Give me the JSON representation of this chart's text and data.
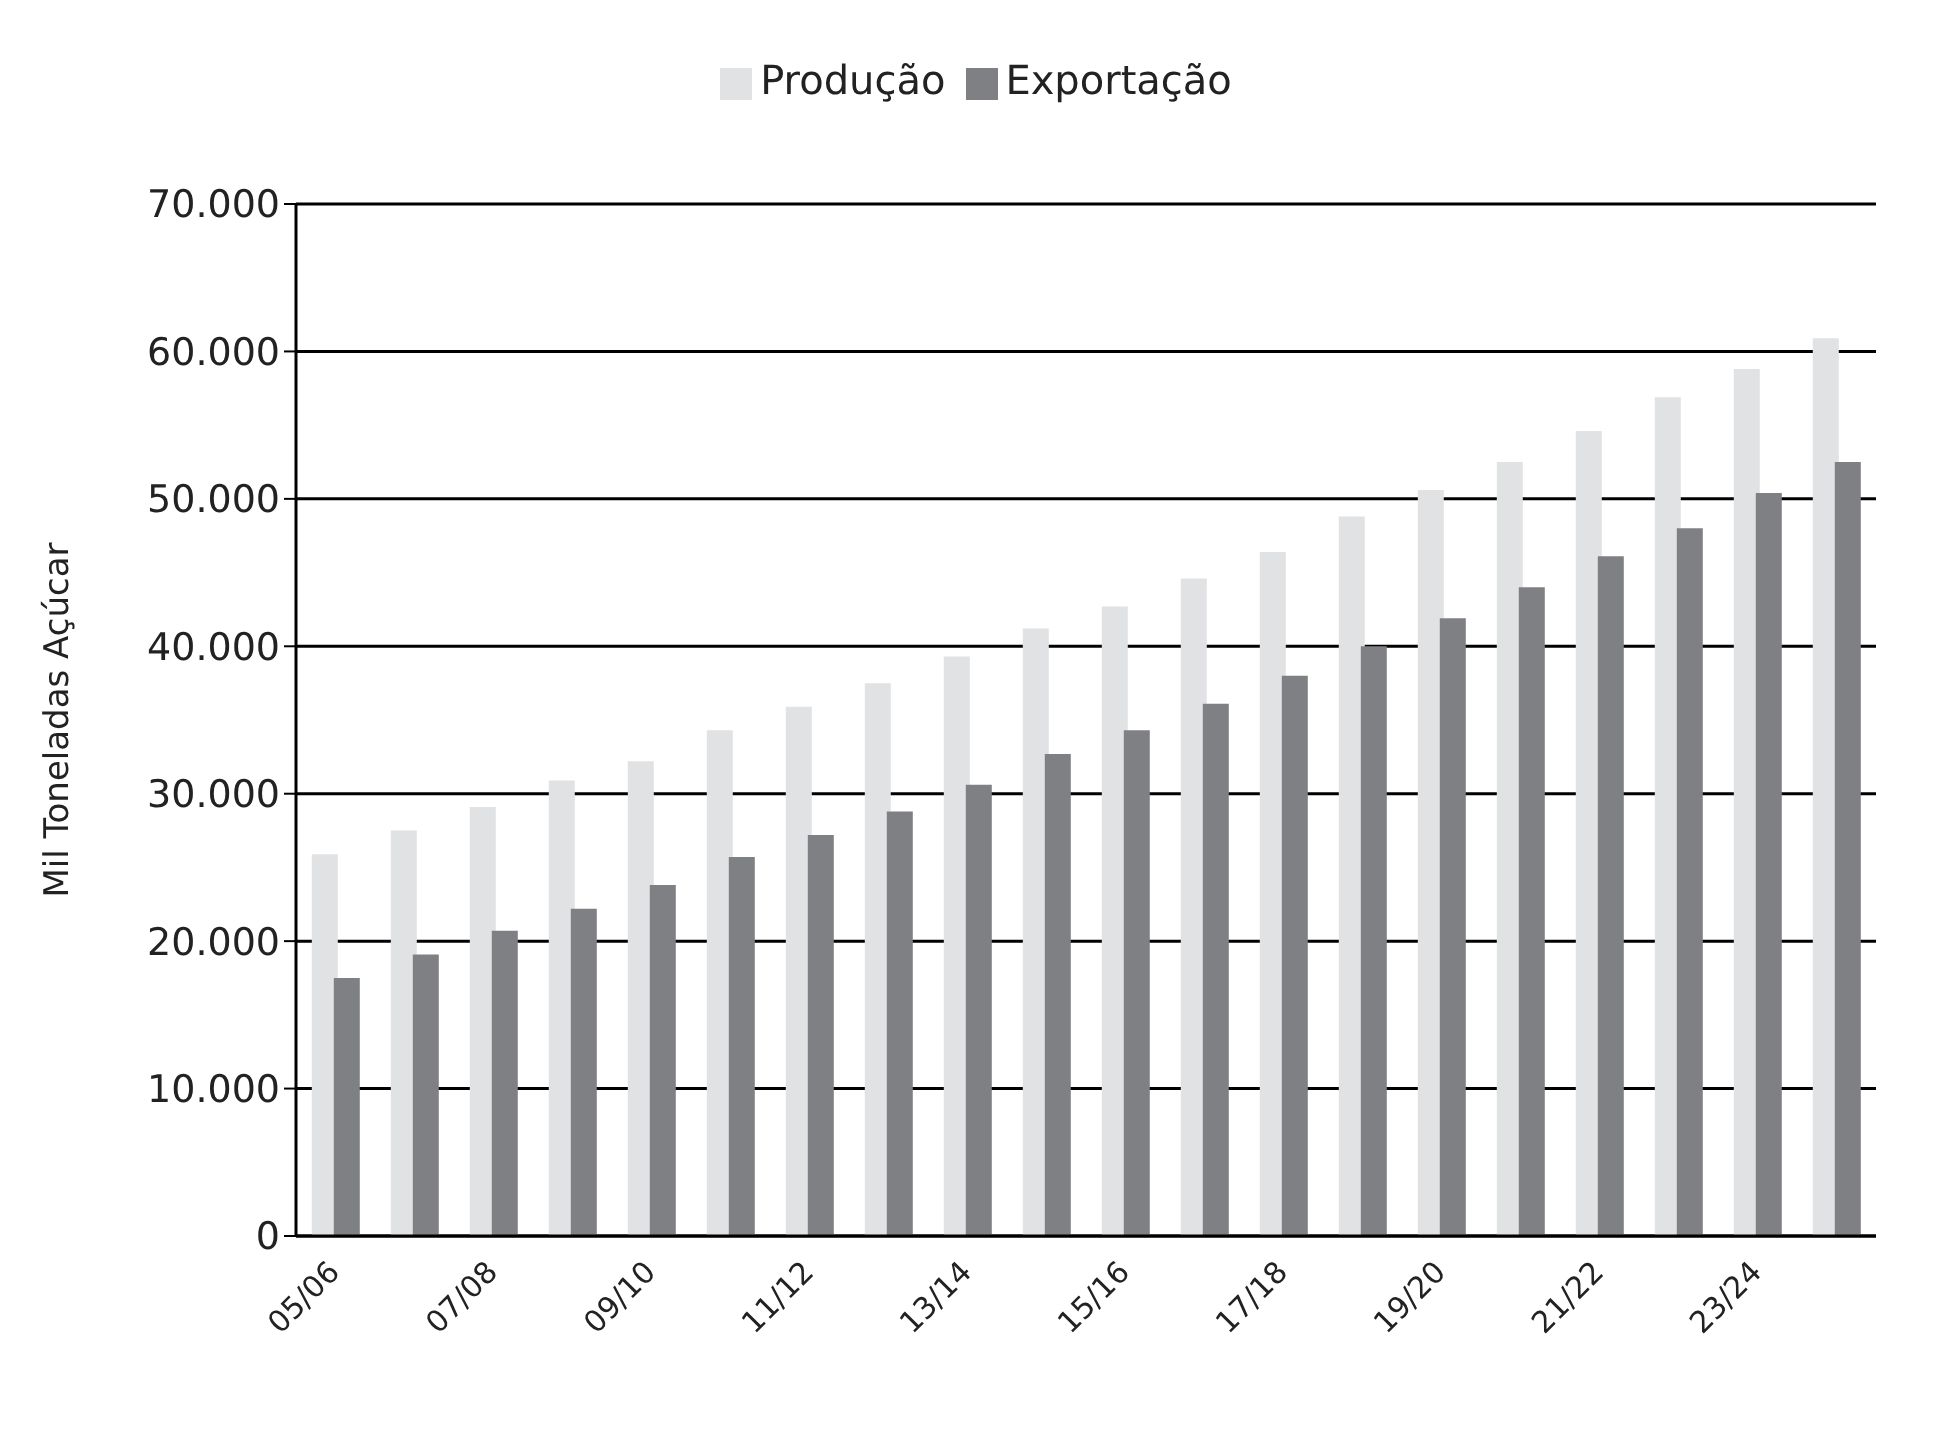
{
  "chart_data": {
    "type": "bar",
    "ylabel": "Mil Toneladas Açúcar",
    "categories": [
      "05/06",
      null,
      "07/08",
      null,
      "09/10",
      null,
      "11/12",
      null,
      "13/14",
      null,
      "15/16",
      null,
      "17/18",
      null,
      "19/20",
      null,
      "21/22",
      null,
      "23/24",
      null
    ],
    "series": [
      {
        "name": "Produção",
        "color": "#e1e2e4",
        "values": [
          25900,
          27500,
          29100,
          30900,
          32200,
          34300,
          35900,
          37500,
          39300,
          41200,
          42700,
          44600,
          46400,
          48800,
          50600,
          52500,
          54600,
          56900,
          58800,
          60900
        ]
      },
      {
        "name": "Exportação",
        "color": "#7f8084",
        "values": [
          17500,
          19100,
          20700,
          22200,
          23800,
          25700,
          27200,
          28800,
          30600,
          32700,
          34300,
          36100,
          38000,
          40000,
          41900,
          44000,
          46100,
          48000,
          50400,
          52500
        ]
      }
    ],
    "ylim": [
      0,
      70000
    ],
    "yticks": [
      {
        "value": 0,
        "label": "0"
      },
      {
        "value": 10000,
        "label": "10.000"
      },
      {
        "value": 20000,
        "label": "20.000"
      },
      {
        "value": 30000,
        "label": "30.000"
      },
      {
        "value": 40000,
        "label": "40.000"
      },
      {
        "value": 50000,
        "label": "50.000"
      },
      {
        "value": 60000,
        "label": "60.000"
      },
      {
        "value": 70000,
        "label": "70.000"
      }
    ],
    "grid": "y",
    "legend": "top"
  }
}
